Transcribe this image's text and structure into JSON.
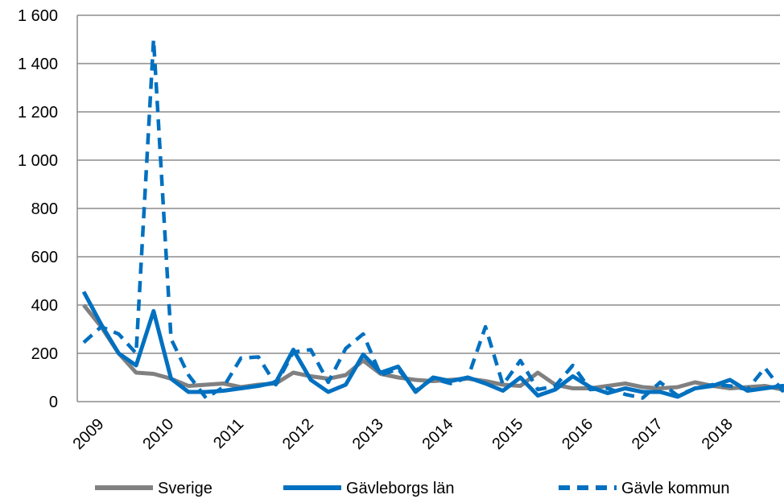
{
  "chart_data": {
    "type": "line",
    "title": "",
    "xlabel": "",
    "ylabel": "",
    "ylim": [
      0,
      1600
    ],
    "yticks": [
      0,
      200,
      400,
      600,
      800,
      1000,
      1200,
      1400,
      1600
    ],
    "ytick_labels": [
      "0",
      "200",
      "400",
      "600",
      "800",
      "1 000",
      "1 200",
      "1 400",
      "1 600"
    ],
    "x_labels": [
      "2009",
      "2010",
      "2011",
      "2012",
      "2013",
      "2014",
      "2015",
      "2016",
      "2017",
      "2018"
    ],
    "periods_per_year": 4,
    "grid": true,
    "legend_position": "bottom",
    "series": [
      {
        "name": "Sverige",
        "color": "#808080",
        "style": "solid",
        "values": [
          400,
          310,
          200,
          120,
          115,
          95,
          65,
          70,
          75,
          60,
          70,
          75,
          120,
          105,
          95,
          110,
          170,
          115,
          100,
          90,
          85,
          90,
          95,
          85,
          70,
          65,
          120,
          70,
          55,
          55,
          65,
          75,
          60,
          55,
          60,
          80,
          65,
          55,
          60,
          65,
          50,
          55,
          60,
          65,
          50
        ]
      },
      {
        "name": "Gävleborgs län",
        "color": "#0070c0",
        "style": "solid",
        "values": [
          455,
          320,
          200,
          150,
          375,
          95,
          40,
          40,
          45,
          55,
          65,
          80,
          215,
          90,
          40,
          70,
          195,
          120,
          145,
          40,
          100,
          85,
          100,
          75,
          45,
          100,
          25,
          50,
          105,
          60,
          35,
          55,
          40,
          40,
          20,
          55,
          65,
          90,
          45,
          55,
          65,
          60,
          35
        ]
      },
      {
        "name": "Gävle kommun",
        "color": "#0070c0",
        "style": "dashed",
        "values": [
          245,
          310,
          280,
          200,
          1500,
          260,
          110,
          15,
          60,
          180,
          185,
          70,
          205,
          215,
          80,
          220,
          280,
          110,
          135,
          45,
          95,
          75,
          100,
          310,
          70,
          170,
          50,
          65,
          150,
          50,
          55,
          30,
          15,
          80,
          25,
          55,
          70,
          65,
          50,
          140,
          45,
          70,
          65
        ]
      }
    ]
  }
}
